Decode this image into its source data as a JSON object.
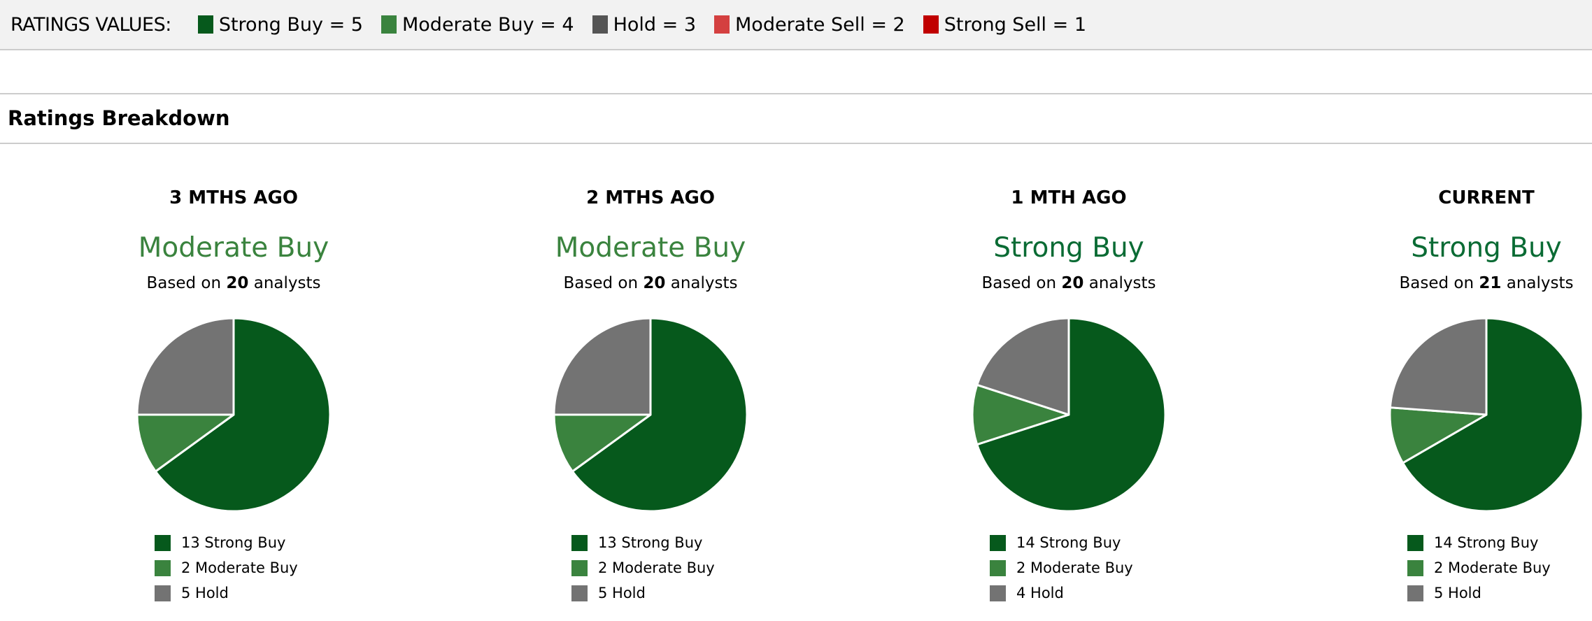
{
  "header": {
    "title": "RATINGS VALUES:",
    "legend": [
      {
        "label": "Strong Buy = 5",
        "color": "#06591c"
      },
      {
        "label": "Moderate Buy = 4",
        "color": "#3a833e"
      },
      {
        "label": "Hold = 3",
        "color": "#555555"
      },
      {
        "label": "Moderate Sell = 2",
        "color": "#d44040"
      },
      {
        "label": "Strong Sell = 1",
        "color": "#c00000"
      }
    ]
  },
  "section_title": "Ratings Breakdown",
  "chart_data": [
    {
      "type": "pie",
      "title": "3 MTHS AGO",
      "rating": "Moderate Buy",
      "rating_color": "#3a833e",
      "based_prefix": "Based on ",
      "analysts": "20",
      "based_suffix": " analysts",
      "slices": [
        {
          "label": "Strong Buy",
          "value": 13,
          "text": "13 Strong Buy",
          "color": "#06591c"
        },
        {
          "label": "Moderate Buy",
          "value": 2,
          "text": "2 Moderate Buy",
          "color": "#3a833e"
        },
        {
          "label": "Hold",
          "value": 5,
          "text": "5 Hold",
          "color": "#737373"
        }
      ]
    },
    {
      "type": "pie",
      "title": "2 MTHS AGO",
      "rating": "Moderate Buy",
      "rating_color": "#3a833e",
      "based_prefix": "Based on ",
      "analysts": "20",
      "based_suffix": " analysts",
      "slices": [
        {
          "label": "Strong Buy",
          "value": 13,
          "text": "13 Strong Buy",
          "color": "#06591c"
        },
        {
          "label": "Moderate Buy",
          "value": 2,
          "text": "2 Moderate Buy",
          "color": "#3a833e"
        },
        {
          "label": "Hold",
          "value": 5,
          "text": "5 Hold",
          "color": "#737373"
        }
      ]
    },
    {
      "type": "pie",
      "title": "1 MTH AGO",
      "rating": "Strong Buy",
      "rating_color": "#0a6b34",
      "based_prefix": "Based on ",
      "analysts": "20",
      "based_suffix": " analysts",
      "slices": [
        {
          "label": "Strong Buy",
          "value": 14,
          "text": "14 Strong Buy",
          "color": "#06591c"
        },
        {
          "label": "Moderate Buy",
          "value": 2,
          "text": "2 Moderate Buy",
          "color": "#3a833e"
        },
        {
          "label": "Hold",
          "value": 4,
          "text": "4 Hold",
          "color": "#737373"
        }
      ]
    },
    {
      "type": "pie",
      "title": "CURRENT",
      "rating": "Strong Buy",
      "rating_color": "#0a6b34",
      "based_prefix": "Based on ",
      "analysts": "21",
      "based_suffix": " analysts",
      "slices": [
        {
          "label": "Strong Buy",
          "value": 14,
          "text": "14 Strong Buy",
          "color": "#06591c"
        },
        {
          "label": "Moderate Buy",
          "value": 2,
          "text": "2 Moderate Buy",
          "color": "#3a833e"
        },
        {
          "label": "Hold",
          "value": 5,
          "text": "5 Hold",
          "color": "#737373"
        }
      ]
    }
  ]
}
